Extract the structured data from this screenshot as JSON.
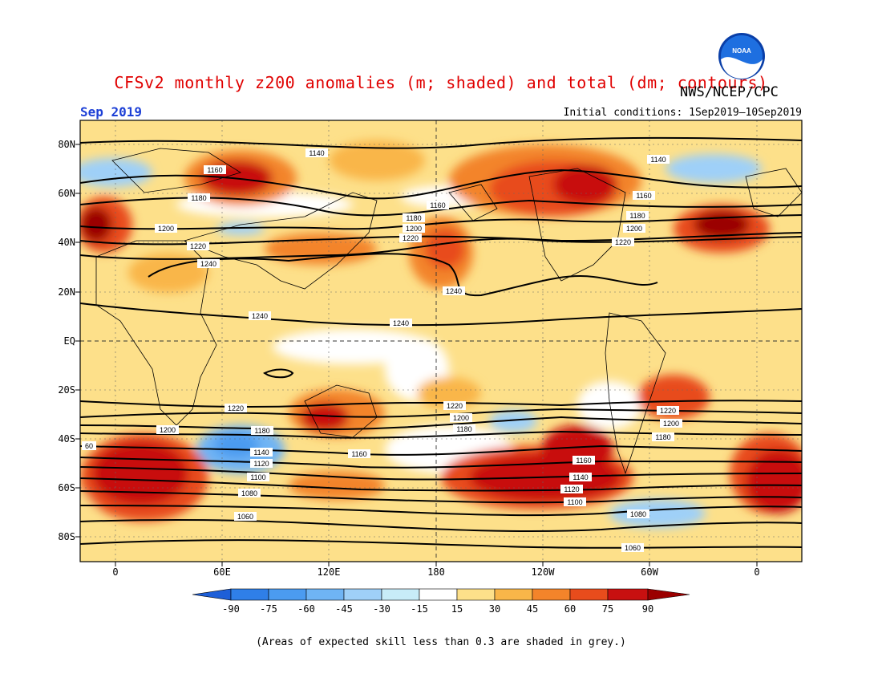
{
  "header": {
    "title": "CFSv2 monthly z200 anomalies (m; shaded) and total (dm; contours)",
    "agency": "NWS/NCEP/CPC",
    "month": "Sep 2019",
    "initial_conditions": "Initial conditions: 1Sep2019–10Sep2019",
    "logo_text": "NOAA"
  },
  "axes": {
    "lat_labels": [
      "80N",
      "60N",
      "40N",
      "20N",
      "EQ",
      "20S",
      "40S",
      "60S",
      "80S"
    ],
    "lon_labels": [
      "0",
      "60E",
      "120E",
      "180",
      "120W",
      "60W",
      "0"
    ]
  },
  "colorbar": {
    "labels": [
      "-90",
      "-75",
      "-60",
      "-45",
      "-30",
      "-15",
      "15",
      "30",
      "45",
      "60",
      "75",
      "90"
    ],
    "colors": [
      "#1e5fd8",
      "#2f7fe8",
      "#4b9bf0",
      "#6fb4f4",
      "#9fd0f8",
      "#c8ecf8",
      "#ffffff",
      "#fde08a",
      "#f9b649",
      "#f3842a",
      "#e84c1c",
      "#c81010",
      "#9b0000"
    ]
  },
  "contours": {
    "labels": [
      "1140",
      "1160",
      "1180",
      "1200",
      "1220",
      "1240",
      "1240",
      "1240",
      "1240",
      "1180",
      "1200",
      "1220",
      "1160",
      "1180",
      "1200",
      "1220",
      "1140",
      "1160",
      "1220",
      "1200",
      "1180",
      "1160",
      "1140",
      "1120",
      "1100",
      "1080",
      "1060",
      "1220",
      "1200",
      "1180",
      "1160",
      "1140",
      "1120",
      "1100",
      "1180",
      "1200",
      "1220",
      "1080",
      "1060",
      "60"
    ]
  },
  "footnote": "(Areas of expected skill less than 0.3 are shaded in grey.)"
}
